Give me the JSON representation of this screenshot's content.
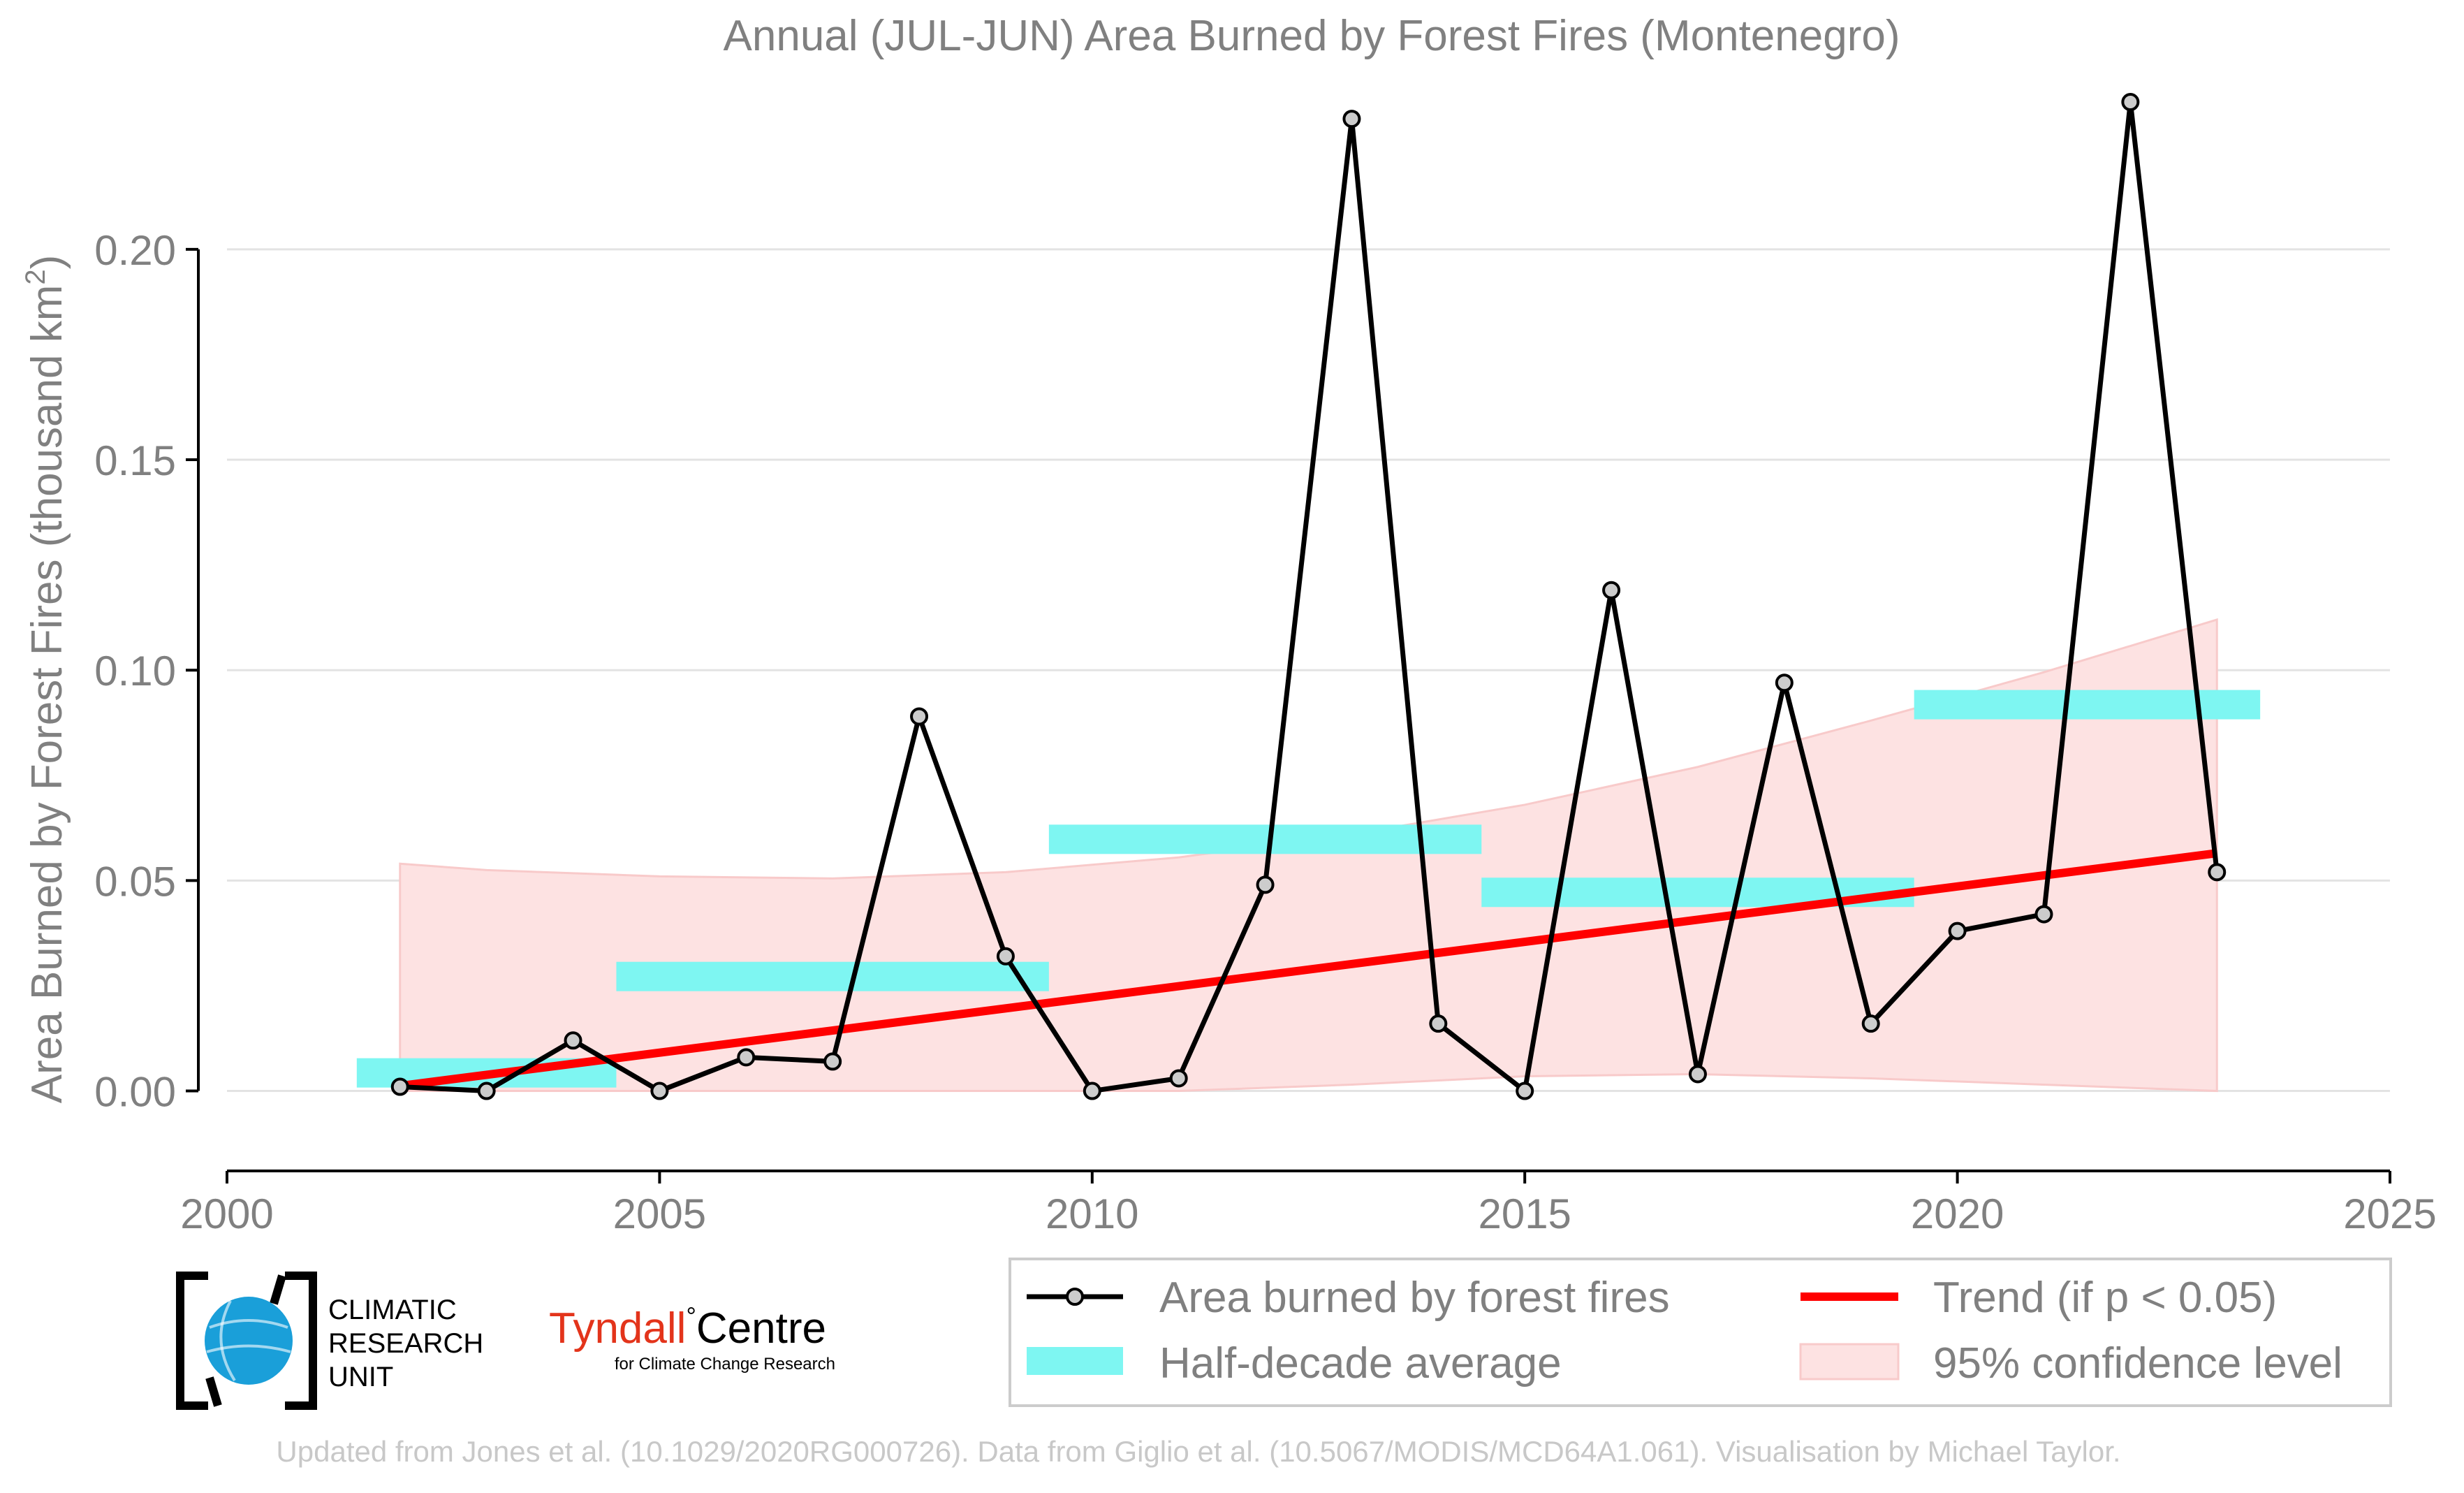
{
  "colors": {
    "text": "#808080",
    "series": "#000000",
    "marker_fill": "#cccccc",
    "half_decade": "#7ef6f2",
    "trend": "#ff0000",
    "ci_fill": "#fde2e2",
    "grid": "#e3e3e3",
    "footer": "#c8c8c8",
    "cru_blue": "#1a9fd9",
    "tyndall_red": "#e3341b"
  },
  "logos": {
    "cru": {
      "line1": "CLIMATIC",
      "line2": "RESEARCH",
      "line3": "UNIT"
    },
    "tyndall": {
      "name": "Tyndall",
      "degree": "°",
      "centre": "Centre",
      "tagline": "for Climate Change Research"
    }
  },
  "footer": "Updated from Jones et al. (10.1029/2020RG000726). Data from Giglio et al. (10.5067/MODIS/MCD64A1.061). Visualisation by Michael Taylor.",
  "chart_data": {
    "type": "line",
    "title": "Annual (JUL-JUN) Area Burned by Forest Fires (Montenegro)",
    "ylabel_main": "Area Burned by Forest Fires (thousand km",
    "ylabel_sup": "2",
    "ylabel_close": ")",
    "xlabel": "",
    "xlim": [
      2000,
      2025
    ],
    "ylim": [
      -0.019,
      0.236
    ],
    "xticks": [
      "2000",
      "2005",
      "2010",
      "2015",
      "2020",
      "2025"
    ],
    "yticks": [
      "0.00",
      "0.05",
      "0.10",
      "0.15",
      "0.20"
    ],
    "grid": "horizontal",
    "legend_position": "bottom-right",
    "series": [
      {
        "name": "Area burned by forest fires",
        "type": "line-markers",
        "x": [
          2002,
          2003,
          2004,
          2005,
          2006,
          2007,
          2008,
          2009,
          2010,
          2011,
          2012,
          2013,
          2014,
          2015,
          2016,
          2017,
          2018,
          2019,
          2020,
          2021,
          2022,
          2023
        ],
        "y": [
          0.001,
          0.0,
          0.012,
          0.0,
          0.008,
          0.007,
          0.089,
          0.032,
          0.0,
          0.003,
          0.049,
          0.231,
          0.016,
          0.0,
          0.119,
          0.004,
          0.097,
          0.016,
          0.038,
          0.042,
          0.235,
          0.052
        ]
      },
      {
        "name": "Half-decade average",
        "type": "bars",
        "periods": [
          {
            "from": 2001.5,
            "to": 2004.5,
            "value": 0.0043
          },
          {
            "from": 2004.5,
            "to": 2009.5,
            "value": 0.0272
          },
          {
            "from": 2009.5,
            "to": 2014.5,
            "value": 0.0598
          },
          {
            "from": 2014.5,
            "to": 2019.5,
            "value": 0.0472
          },
          {
            "from": 2019.5,
            "to": 2023.5,
            "value": 0.0918
          }
        ]
      },
      {
        "name": "Trend (if p < 0.05)",
        "type": "trend",
        "x": [
          2002,
          2023
        ],
        "y": [
          0.0012,
          0.0565
        ]
      },
      {
        "name": "95% confidence level",
        "type": "band",
        "x": [
          2002,
          2003,
          2005,
          2007,
          2009,
          2011,
          2013,
          2015,
          2017,
          2019,
          2021,
          2023
        ],
        "lower": [
          0.0,
          0.0,
          0.0,
          0.0,
          0.0,
          0.0,
          0.0015,
          0.0035,
          0.004,
          0.003,
          0.0015,
          0.0
        ],
        "upper": [
          0.054,
          0.0525,
          0.051,
          0.0505,
          0.052,
          0.0555,
          0.061,
          0.068,
          0.077,
          0.088,
          0.0995,
          0.112
        ]
      }
    ]
  }
}
